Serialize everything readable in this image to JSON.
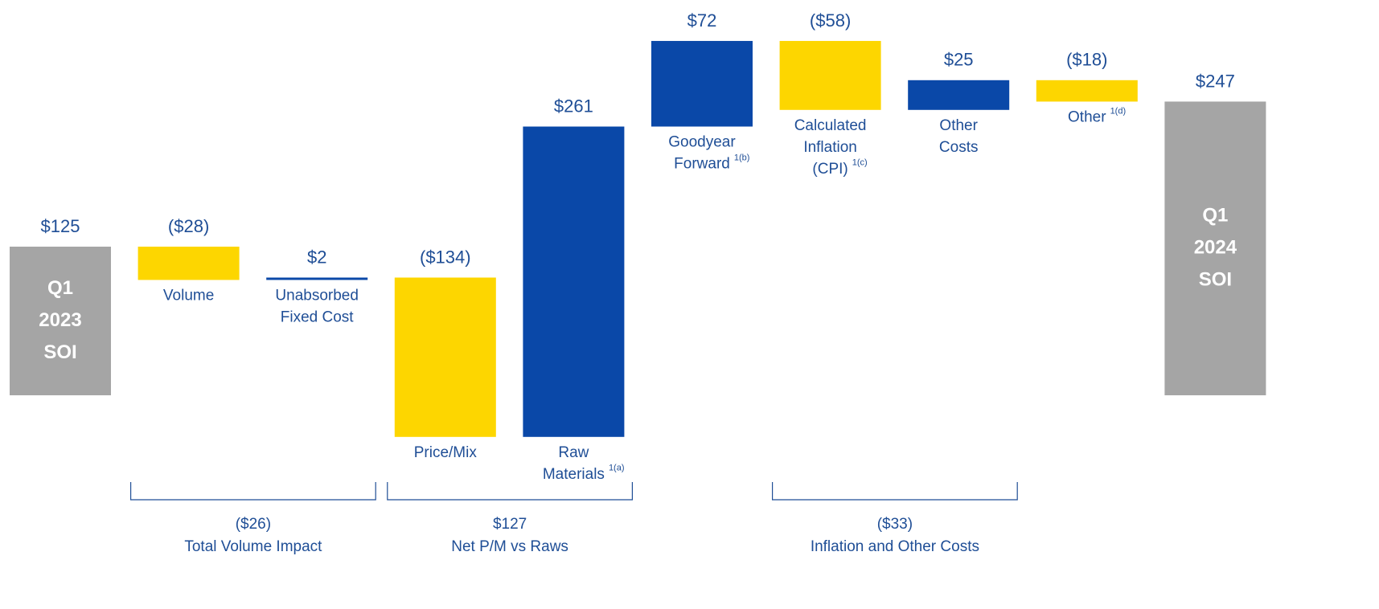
{
  "chart_data": {
    "type": "waterfall",
    "categories": [
      {
        "lines": [
          "Q1",
          "2023",
          "SOI"
        ]
      },
      {
        "lines": [
          "Volume"
        ]
      },
      {
        "lines": [
          "Unabsorbed",
          "Fixed Cost"
        ]
      },
      {
        "lines": [
          "Price/Mix"
        ]
      },
      {
        "lines": [
          "Raw",
          "Materials"
        ],
        "note": "1(a)"
      },
      {
        "lines": [
          "Goodyear",
          "Forward"
        ],
        "note": "1(b)"
      },
      {
        "lines": [
          "Calculated",
          "Inflation",
          "(CPI)"
        ],
        "note": "1(c)"
      },
      {
        "lines": [
          "Other",
          "Costs"
        ]
      },
      {
        "lines": [
          "Other"
        ],
        "note": "1(d)"
      },
      {
        "lines": [
          "Q1",
          "2024",
          "SOI"
        ]
      }
    ],
    "measure": [
      "total",
      "relative",
      "relative",
      "relative",
      "relative",
      "relative",
      "relative",
      "relative",
      "relative",
      "total"
    ],
    "values": [
      125,
      -28,
      2,
      -134,
      261,
      72,
      -58,
      25,
      -18,
      247
    ],
    "value_labels": [
      "$125",
      "($28)",
      "$2",
      "($134)",
      "$261",
      "$72",
      "($58)",
      "$25",
      "($18)",
      "$247"
    ],
    "increase_color": "#0a48a8",
    "decrease_color": "#fdd600",
    "total_color": "#a5a5a5",
    "groups": [
      {
        "from": 1,
        "to": 2,
        "value": -26,
        "label": "($26)",
        "name": "Total Volume Impact"
      },
      {
        "from": 3,
        "to": 4,
        "value": 127,
        "label": "$127",
        "name": "Net P/M vs Raws"
      },
      {
        "from": 6,
        "to": 7,
        "value": -33,
        "label": "($33)",
        "name": "Inflation and Other Costs"
      }
    ]
  }
}
